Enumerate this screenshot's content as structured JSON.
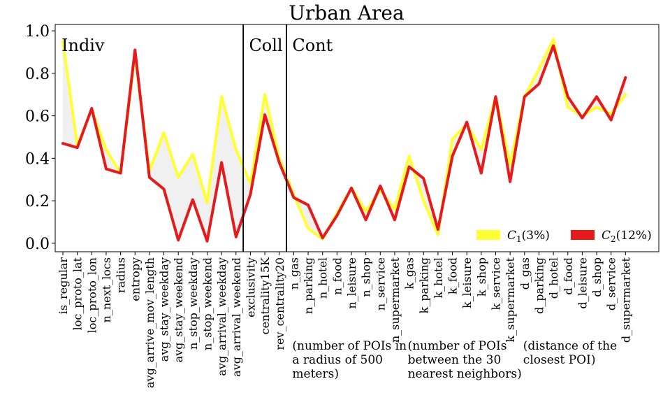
{
  "chart_data": {
    "type": "line",
    "title": "Urban Area",
    "xlabel": "",
    "ylabel": "",
    "ylim": [
      -0.04,
      1.03
    ],
    "yticks": [
      0.0,
      0.2,
      0.4,
      0.6,
      0.8,
      1.0
    ],
    "ytick_labels": [
      "0.0",
      "0.2",
      "0.4",
      "0.6",
      "0.8",
      "1.0"
    ],
    "grid": false,
    "legend_position": "bottom-right",
    "categories": [
      "is_regular",
      "loc_proto_lat",
      "loc_proto_lon",
      "n_next_locs",
      "radius",
      "entropy",
      "avg_arrive_mov_length",
      "avg_stay_weekday",
      "avg_stay_weekend",
      "n_stop_weekday",
      "n_stop_weekend",
      "avg_arrival_weekday",
      "avg_arrival_weekend",
      "exclusivity",
      "centrality15K",
      "rev_centrality20",
      "n_gas",
      "n_parking",
      "n_hotel",
      "n_food",
      "n_leisure",
      "n_shop",
      "n_service",
      "n_supermarket",
      "k_gas",
      "k_parking",
      "k_hotel",
      "k_food",
      "k_leisure",
      "k_shop",
      "k_service",
      "k_supermarket",
      "d_gas",
      "d_parking",
      "d_hotel",
      "d_food",
      "d_leisure",
      "d_shop",
      "d_service",
      "d_supermarket"
    ],
    "series": [
      {
        "name": "C1(3%)",
        "name_main": "C",
        "name_sub": "1",
        "name_suffix": "(3%)",
        "color": "#ffff33",
        "values": [
          0.95,
          0.46,
          0.63,
          0.44,
          0.33,
          0.89,
          0.34,
          0.52,
          0.31,
          0.42,
          0.19,
          0.69,
          0.44,
          0.28,
          0.7,
          0.4,
          0.23,
          0.07,
          0.02,
          0.14,
          0.26,
          0.15,
          0.25,
          0.16,
          0.41,
          0.2,
          0.04,
          0.49,
          0.56,
          0.44,
          0.69,
          0.37,
          0.69,
          0.82,
          0.96,
          0.64,
          0.6,
          0.64,
          0.61,
          0.7
        ]
      },
      {
        "name": "C2(12%)",
        "name_main": "C",
        "name_sub": "2",
        "name_suffix": "(12%)",
        "color": "#e41a1c",
        "values": [
          0.47,
          0.45,
          0.635,
          0.35,
          0.33,
          0.91,
          0.31,
          0.255,
          0.015,
          0.205,
          0.01,
          0.38,
          0.03,
          0.23,
          0.605,
          0.38,
          0.215,
          0.18,
          0.025,
          0.13,
          0.26,
          0.11,
          0.27,
          0.11,
          0.36,
          0.305,
          0.065,
          0.41,
          0.57,
          0.33,
          0.69,
          0.29,
          0.69,
          0.75,
          0.93,
          0.69,
          0.59,
          0.69,
          0.58,
          0.78
        ]
      }
    ],
    "group_labels": [
      {
        "text": "Indiv",
        "at_index": 0
      },
      {
        "text": "Coll",
        "at_index": 13
      },
      {
        "text": "Cont",
        "at_index": 16
      }
    ],
    "separators_after_index": [
      12,
      15
    ],
    "annotations": [
      {
        "lines": [
          "(number of POIs in",
          "a radius of 500",
          "meters)"
        ],
        "at_index": 16
      },
      {
        "lines": [
          "(number of POIs",
          "between the 30",
          "nearest neighbors)"
        ],
        "at_index": 24
      },
      {
        "lines": [
          "(distance of the",
          "closest POI)"
        ],
        "at_index": 32
      }
    ]
  }
}
